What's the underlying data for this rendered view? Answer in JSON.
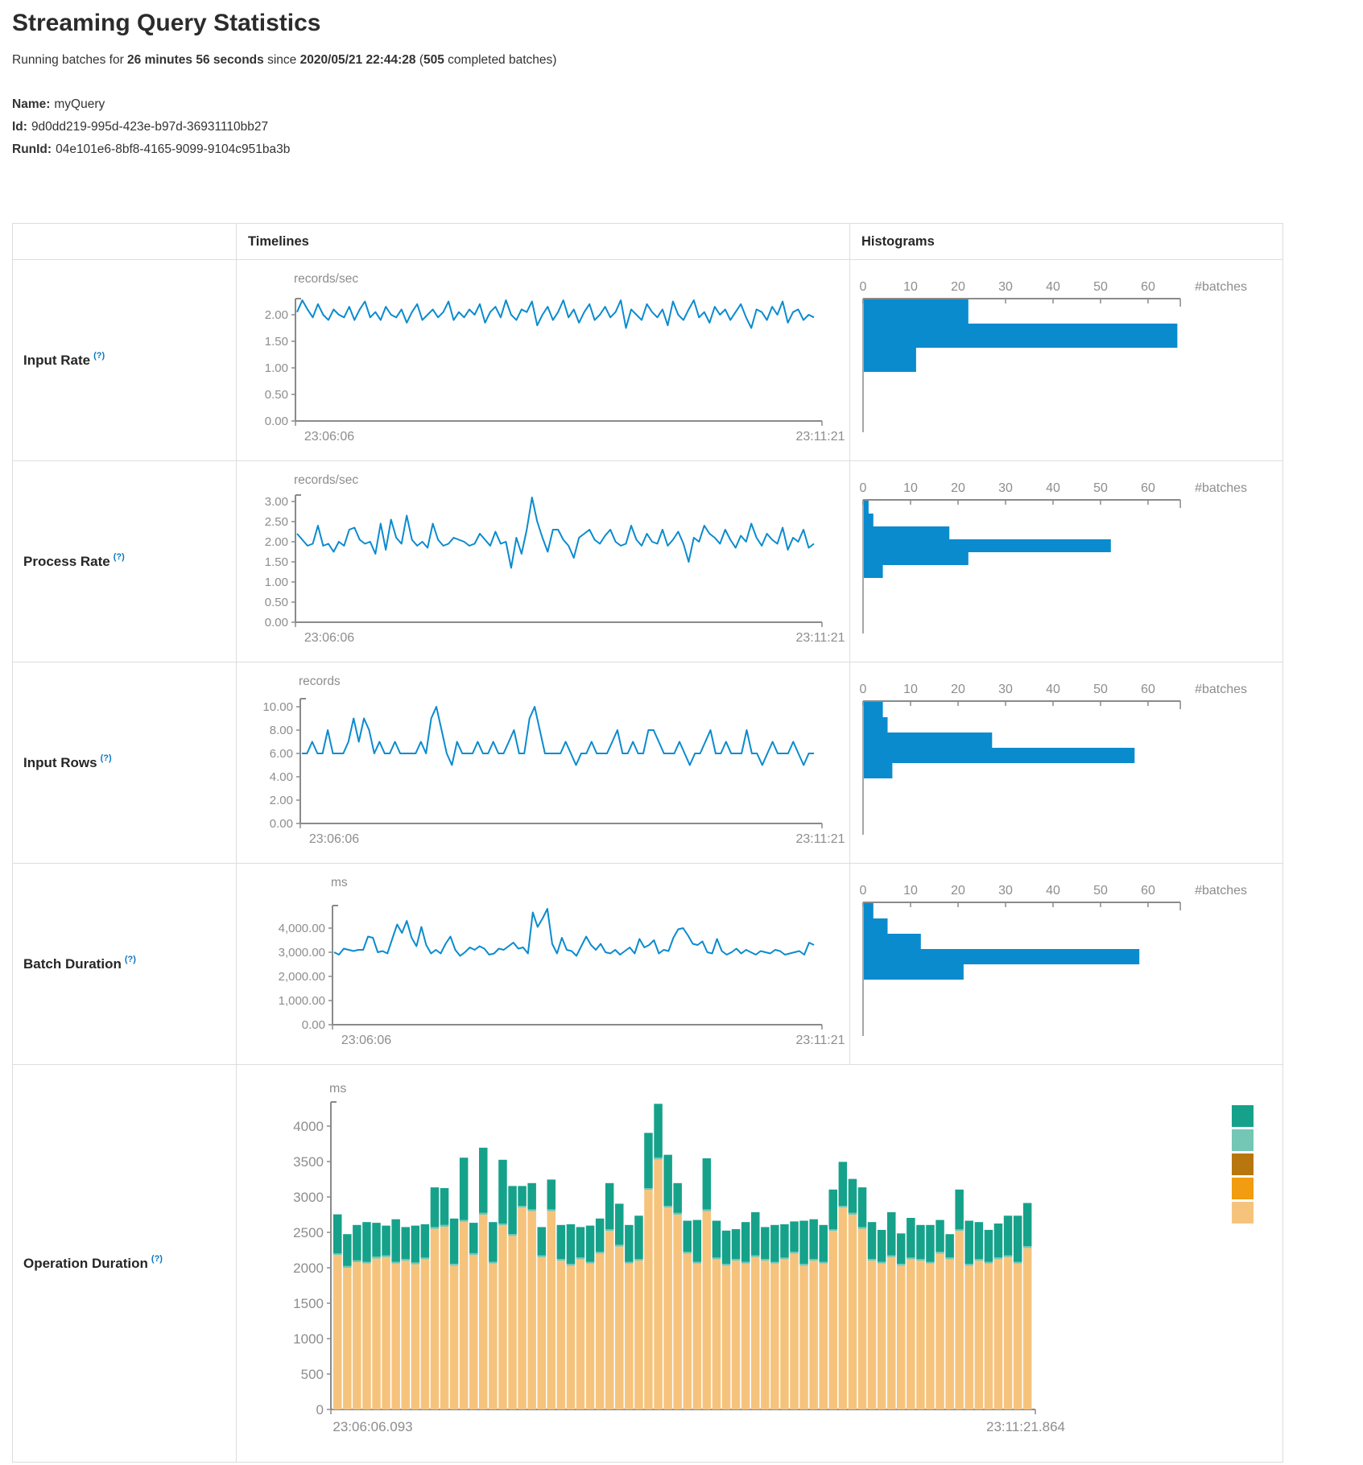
{
  "page": {
    "title": "Streaming Query Statistics",
    "subtitle": {
      "prefix": "Running batches for ",
      "duration": "26 minutes 56 seconds",
      "since": " since ",
      "start_time": "2020/05/21 22:44:28",
      "paren": " (",
      "batch_count": "505",
      "suffix": " completed batches)"
    },
    "query": {
      "name_label": "Name:",
      "name_value": "myQuery",
      "id_label": "Id:",
      "id_value": "9d0dd219-995d-423e-b97d-36931110bb27",
      "runid_label": "RunId:",
      "runid_value": "04e101e6-8bf8-4165-9099-9104c951ba3b"
    }
  },
  "table": {
    "headers": {
      "timelines": "Timelines",
      "histograms": "Histograms"
    },
    "help_marker": "(?)",
    "row_labels": [
      "Input Rate",
      "Process Rate",
      "Input Rows",
      "Batch Duration",
      "Operation Duration"
    ]
  },
  "colors": {
    "blue": "#0a8bce",
    "teal": "#16a28a",
    "teal_light": "#74c6b5",
    "orange_dark": "#b8770e",
    "orange": "#f29c11",
    "tan": "#f6c37d",
    "axis": "#8a8a8a",
    "tick_text": "#8d8d8d",
    "help_link": "#0b76c2"
  },
  "chart_data": [
    {
      "id": "input-rate",
      "type": "line",
      "unit": "records/sec",
      "x_start": "23:06:06",
      "x_end": "23:11:21",
      "yticks": [
        "0.00",
        "0.50",
        "1.00",
        "1.50",
        "2.00"
      ],
      "yticks_num": [
        0,
        0.5,
        1,
        1.5,
        2
      ],
      "values": [
        2.05,
        2.3,
        2.1,
        1.95,
        2.2,
        2.0,
        1.9,
        2.1,
        2.0,
        1.95,
        2.15,
        1.9,
        2.1,
        2.25,
        1.95,
        2.05,
        1.9,
        2.15,
        2.0,
        1.95,
        2.1,
        1.85,
        2.05,
        2.2,
        1.9,
        2.0,
        2.1,
        1.95,
        2.05,
        2.25,
        1.9,
        2.05,
        1.95,
        2.1,
        2.0,
        2.2,
        1.85,
        2.05,
        2.15,
        1.95,
        2.3,
        2.0,
        1.9,
        2.1,
        2.05,
        2.25,
        1.8,
        2.0,
        2.15,
        1.9,
        2.05,
        2.3,
        1.95,
        2.1,
        1.85,
        2.05,
        2.2,
        1.9,
        2.0,
        2.15,
        1.95,
        2.05,
        2.3,
        1.75,
        2.1,
        2.0,
        1.9,
        2.2,
        2.05,
        1.95,
        2.1,
        1.8,
        2.25,
        2.0,
        1.9,
        2.1,
        2.3,
        1.95,
        2.05,
        1.85,
        2.15,
        2.0,
        2.1,
        1.9,
        2.05,
        2.2,
        1.95,
        1.75,
        2.1,
        2.05,
        1.9,
        2.15,
        2.0,
        2.25,
        1.85,
        2.05,
        2.1,
        1.9,
        2.0,
        1.95
      ],
      "histogram": {
        "xticks": [
          "0",
          "10",
          "20",
          "30",
          "40",
          "50",
          "60"
        ],
        "axis_max": 66.8,
        "count_label": "#batches",
        "bars": [
          22,
          66,
          11
        ]
      }
    },
    {
      "id": "process-rate",
      "type": "line",
      "unit": "records/sec",
      "x_start": "23:06:06",
      "x_end": "23:11:21",
      "yticks": [
        "0.00",
        "0.50",
        "1.00",
        "1.50",
        "2.00",
        "2.50",
        "3.00"
      ],
      "yticks_num": [
        0,
        0.5,
        1,
        1.5,
        2,
        2.5,
        3
      ],
      "values": [
        2.2,
        2.05,
        1.9,
        1.95,
        2.4,
        1.9,
        1.95,
        1.75,
        2.0,
        1.9,
        2.3,
        2.35,
        2.05,
        1.95,
        2.0,
        1.7,
        2.45,
        1.8,
        2.55,
        2.1,
        1.95,
        2.65,
        2.05,
        1.9,
        2.0,
        1.85,
        2.45,
        2.05,
        1.9,
        1.95,
        2.1,
        2.05,
        2.0,
        1.9,
        1.95,
        2.2,
        2.05,
        1.9,
        2.25,
        1.95,
        2.0,
        1.35,
        2.1,
        1.7,
        2.3,
        3.1,
        2.5,
        2.1,
        1.75,
        2.3,
        2.3,
        2.05,
        1.9,
        1.6,
        2.1,
        2.2,
        2.3,
        2.05,
        1.95,
        2.15,
        2.3,
        2.0,
        1.9,
        1.95,
        2.4,
        2.05,
        1.9,
        2.2,
        2.0,
        1.95,
        2.3,
        1.9,
        2.05,
        2.25,
        1.95,
        1.5,
        2.1,
        2.0,
        2.4,
        2.2,
        2.1,
        1.95,
        2.3,
        2.05,
        1.85,
        2.15,
        2.0,
        2.45,
        2.1,
        1.9,
        2.2,
        2.05,
        1.95,
        2.35,
        1.8,
        2.1,
        2.0,
        2.3,
        1.85,
        1.95
      ],
      "histogram": {
        "xticks": [
          "0",
          "10",
          "20",
          "30",
          "40",
          "50",
          "60"
        ],
        "axis_max": 66.8,
        "count_label": "#batches",
        "bars": [
          1,
          2,
          18,
          52,
          22,
          4
        ]
      }
    },
    {
      "id": "input-rows",
      "type": "line",
      "unit": "records",
      "x_start": "23:06:06",
      "x_end": "23:11:21",
      "yticks": [
        "0.00",
        "2.00",
        "4.00",
        "6.00",
        "8.00",
        "10.00"
      ],
      "yticks_num": [
        0,
        2,
        4,
        6,
        8,
        10
      ],
      "values": [
        6,
        6,
        7,
        6,
        6,
        8,
        6,
        6,
        6,
        7,
        9,
        7,
        9,
        8,
        6,
        7,
        6,
        6,
        7,
        6,
        6,
        6,
        6,
        7,
        6,
        9,
        10,
        8,
        6,
        5,
        7,
        6,
        6,
        6,
        7,
        6,
        6,
        7,
        6,
        6,
        7,
        8,
        6,
        6,
        9,
        10,
        8,
        6,
        6,
        6,
        6,
        7,
        6,
        5,
        6,
        6,
        7,
        6,
        6,
        6,
        7,
        8,
        6,
        6,
        7,
        6,
        6,
        8,
        8,
        7,
        6,
        6,
        6,
        7,
        6,
        5,
        6,
        6,
        7,
        8,
        6,
        6,
        7,
        6,
        6,
        6,
        8,
        6,
        6,
        5,
        6,
        7,
        6,
        6,
        6,
        7,
        6,
        5,
        6,
        6
      ],
      "histogram": {
        "xticks": [
          "0",
          "10",
          "20",
          "30",
          "40",
          "50",
          "60"
        ],
        "axis_max": 66.8,
        "count_label": "#batches",
        "bars": [
          4,
          5,
          27,
          57,
          6
        ]
      }
    },
    {
      "id": "batch-duration",
      "type": "line",
      "unit": "ms",
      "x_start": "23:06:06",
      "x_end": "23:11:21",
      "yticks": [
        "0.00",
        "1,000.00",
        "2,000.00",
        "3,000.00",
        "4,000.00"
      ],
      "yticks_num": [
        0,
        1000,
        2000,
        3000,
        4000
      ],
      "values": [
        3000,
        2900,
        3150,
        3100,
        3050,
        3100,
        3100,
        3650,
        3600,
        3000,
        3050,
        2950,
        3550,
        4150,
        3800,
        4300,
        3600,
        3250,
        4050,
        3300,
        2950,
        3100,
        2950,
        3350,
        3650,
        3100,
        2850,
        3000,
        3200,
        3100,
        3250,
        3150,
        2900,
        2950,
        3150,
        3100,
        3250,
        3400,
        3150,
        3200,
        2950,
        4650,
        4050,
        4400,
        4800,
        3350,
        2950,
        3600,
        3100,
        3050,
        2850,
        3250,
        3650,
        3300,
        3100,
        3350,
        3000,
        2950,
        3100,
        2900,
        3050,
        3200,
        2950,
        3550,
        3200,
        3300,
        3500,
        2950,
        3100,
        3050,
        3600,
        3950,
        4000,
        3700,
        3350,
        3300,
        3450,
        3000,
        2950,
        3550,
        3050,
        2900,
        3000,
        3150,
        2950,
        3100,
        3000,
        2900,
        3050,
        3000,
        2950,
        3100,
        3050,
        2900,
        2950,
        3000,
        3050,
        2900,
        3400,
        3300
      ],
      "histogram": {
        "xticks": [
          "0",
          "10",
          "20",
          "30",
          "40",
          "50",
          "60"
        ],
        "axis_max": 66.8,
        "count_label": "#batches",
        "bars": [
          2,
          5,
          12,
          58,
          21
        ]
      }
    },
    {
      "id": "operation-duration",
      "type": "stacked-bar",
      "unit": "ms",
      "x_start": "23:06:06.093",
      "x_end": "23:11:21.864",
      "yticks": [
        "0",
        "500",
        "1000",
        "1500",
        "2000",
        "2500",
        "3000",
        "3500",
        "4000"
      ],
      "yticks_num": [
        0,
        500,
        1000,
        1500,
        2000,
        2500,
        3000,
        3500,
        4000
      ],
      "legend_colors": [
        "#16a28a",
        "#74c6b5",
        "#b8770e",
        "#f29c11",
        "#f6c37d"
      ],
      "sliver_ms": 25,
      "series": [
        {
          "name": "bottom-tan",
          "color": "#f6c37d",
          "values": [
            2180,
            2000,
            2080,
            2060,
            2130,
            2150,
            2060,
            2100,
            2050,
            2120,
            2550,
            2580,
            2030,
            2650,
            2180,
            2750,
            2060,
            2600,
            2450,
            2850,
            2800,
            2150,
            2800,
            2100,
            2030,
            2120,
            2060,
            2200,
            2520,
            2300,
            2060,
            2100,
            3100,
            3530,
            2850,
            2750,
            2200,
            2060,
            2800,
            2120,
            2030,
            2100,
            2060,
            2150,
            2100,
            2060,
            2120,
            2200,
            2030,
            2100,
            2060,
            2520,
            2850,
            2750,
            2550,
            2100,
            2060,
            2150,
            2030,
            2120,
            2100,
            2060,
            2200,
            2120,
            2520,
            2030,
            2100,
            2060,
            2120,
            2150,
            2060,
            2280
          ]
        },
        {
          "name": "top-teal",
          "color": "#16a28a",
          "values": [
            550,
            450,
            500,
            560,
            480,
            420,
            600,
            450,
            520,
            470,
            560,
            520,
            640,
            880,
            430,
            920,
            560,
            900,
            680,
            280,
            370,
            400,
            420,
            480,
            560,
            430,
            510,
            470,
            650,
            580,
            520,
            610,
            780,
            760,
            720,
            420,
            440,
            590,
            720,
            520,
            470,
            420,
            560,
            610,
            450,
            520,
            470,
            430,
            610,
            560,
            520,
            560,
            620,
            480,
            560,
            520,
            450,
            610,
            430,
            560,
            480,
            520,
            450,
            330,
            560,
            610,
            520,
            450,
            480,
            560,
            650,
            610
          ]
        }
      ]
    }
  ]
}
